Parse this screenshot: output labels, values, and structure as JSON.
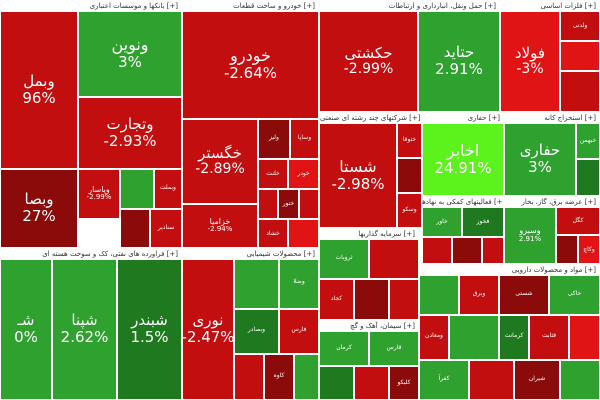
{
  "colors": {
    "dark_red": "#8b0a0a",
    "red": "#c20e0e",
    "bright_red": "#e01414",
    "dark_green": "#1f7a1f",
    "green": "#2fa12f",
    "bright_green": "#33cc33",
    "neon_green": "#5cf21c"
  },
  "sectors": [
    {
      "label": "بانکها و موسسات اعتباری [+]",
      "tiles": [
        {
          "name": "ونوین",
          "change": "3%",
          "color": "green"
        },
        {
          "name": "وتجارت",
          "change": "-2.93%",
          "color": "red"
        },
        {
          "name": "وبمل",
          "change": "96%",
          "color": "red"
        },
        {
          "name": "وبصا",
          "change": "27%",
          "color": "dark_red"
        },
        {
          "name": "وپاسار",
          "change": "-2.99%",
          "color": "red"
        }
      ]
    },
    {
      "label": "خودرو و ساخت قطعات [+]",
      "tiles": [
        {
          "name": "خودرو",
          "change": "-2.64%",
          "color": "red"
        },
        {
          "name": "خگستر",
          "change": "-2.89%",
          "color": "red"
        },
        {
          "name": "خزامیا",
          "change": "-2.94%",
          "color": "red"
        }
      ]
    },
    {
      "label": "حمل ونقل، انبارداری و ارتباطات [+]",
      "tiles": [
        {
          "name": "حکشتی",
          "change": "-2.99%",
          "color": "red"
        },
        {
          "name": "حتاید",
          "change": "2.91%",
          "color": "green"
        }
      ]
    },
    {
      "label": "فلزات اساسی [+]",
      "tiles": [
        {
          "name": "فولاد",
          "change": "-3%",
          "color": "bright_red"
        }
      ]
    },
    {
      "label": "شرکتهای چند رشته ای صنعتی [+]",
      "tiles": [
        {
          "name": "شستا",
          "change": "-2.98%",
          "color": "red"
        }
      ]
    },
    {
      "label": "حفاری [+]",
      "tiles": [
        {
          "name": "اخابر",
          "change": "24.91%",
          "color": "neon_green"
        }
      ]
    },
    {
      "label": "استخراج کانه [+]",
      "tiles": [
        {
          "name": "حفاری",
          "change": "3%",
          "color": "green"
        }
      ]
    },
    {
      "label": "فراورده های نفتی، کک و سوخت هسته ای [+]",
      "tiles": [
        {
          "name": "شبندر",
          "change": "1.5%",
          "color": "dark_green"
        },
        {
          "name": "شپنا",
          "change": "2.62%",
          "color": "green"
        },
        {
          "name": "شـ",
          "change": "0%",
          "color": "green"
        }
      ]
    },
    {
      "label": "محصولات شیمیایی [+]",
      "tiles": [
        {
          "name": "نوری",
          "change": "-2.47%",
          "color": "red"
        }
      ]
    },
    {
      "label": "سرمایه گذاریها [+]",
      "tiles": []
    },
    {
      "label": "فعالیتهای کمکی به نهادها [+]",
      "tiles": []
    },
    {
      "label": "عرضه برق، گاز، بخار [+]",
      "tiles": [
        {
          "name": "وسبرو",
          "change": "2.91%",
          "color": "green"
        }
      ]
    },
    {
      "label": "سیمان، آهک و گچ [+]",
      "tiles": []
    },
    {
      "label": "مواد و محصولات دارویی [+]",
      "tiles": []
    }
  ],
  "small_labels": [
    "وبملت",
    "سنادیر",
    "ولیز",
    "وساپا",
    "خلنت",
    "خودر",
    "ختور",
    "خشاد",
    "ولدنی",
    "ختوقا",
    "وسکو",
    "خبهمن",
    "خاور",
    "فخوز",
    "کگل",
    "وکاچ",
    "ثروبات",
    "کجاد",
    "کرمان",
    "قارس",
    "کلبکو",
    "وضلا",
    "وبصادر",
    "فارس",
    "کاوه",
    "وبرق",
    "شستی",
    "خاکی",
    "ومعادن",
    "کرمانت",
    "قثابت",
    "کفرآ",
    "شیران",
    "پارس",
    "فسپا",
    "شپترو",
    "شپاک",
    "شستی",
    "شفن",
    "ولیتر",
    "فرآور",
    "مارون",
    "زاگرس",
    "غدیر",
    "شکلر",
    "تاپیکو",
    "ثامید",
    "وتوکا",
    "پاخت",
    "کاوه",
    "کچاد",
    "شاخص",
    "آریا",
    "فرود",
    "وبسارو",
    "تیپیکو",
    "ثاخت",
    "ابکار",
    "فماک",
    "نکا"
  ]
}
